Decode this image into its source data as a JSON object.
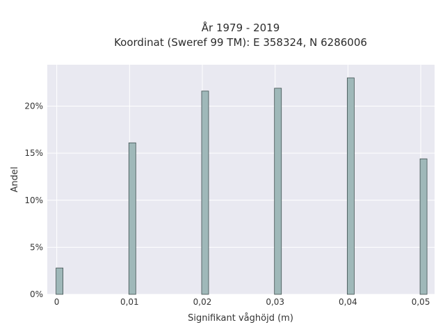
{
  "chart_data": {
    "type": "bar",
    "title_line1": "År 1979 - 2019",
    "title_line2": "Koordinat (Sweref 99 TM): E 358324, N 6286006",
    "xlabel": "Signifikant våghöjd (m)",
    "ylabel": "Andel",
    "x": [
      0,
      0.01,
      0.02,
      0.03,
      0.04,
      0.05
    ],
    "x_tick_labels": [
      "0",
      "0,01",
      "0,02",
      "0,03",
      "0,04",
      "0,05"
    ],
    "values": [
      2.8,
      16.1,
      21.6,
      21.9,
      23.0,
      14.4
    ],
    "y_ticks": [
      0,
      5,
      10,
      15,
      20
    ],
    "y_tick_labels": [
      "0%",
      "5%",
      "10%",
      "15%",
      "20%"
    ],
    "xlim": [
      -0.0013,
      0.0519
    ],
    "ylim": [
      0,
      24.4
    ],
    "grid": true,
    "colors": {
      "bar_fill": "#9fb8b9",
      "bar_stroke": "#3f4f4f",
      "plot_background": "#e9e9f1",
      "grid": "#ffffff"
    }
  }
}
